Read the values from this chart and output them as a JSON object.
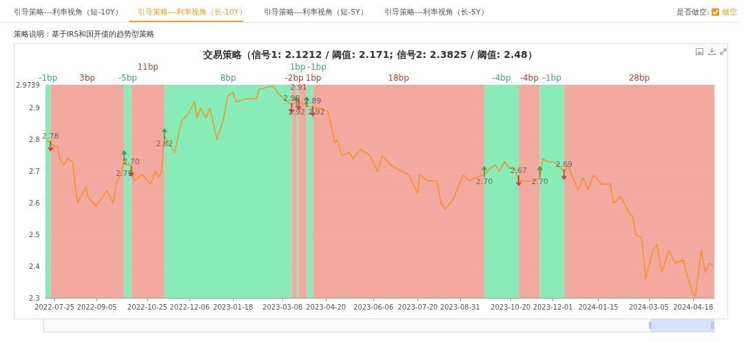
{
  "chart_data": {
    "type": "line",
    "title": "交易策略（信号1: 2.1212 / 阈值: 2.171; 信号2: 2.3825 / 阈值: 2.48）",
    "annotations": [
      "引导策略---利率视角（短-10Y）",
      "引导策略---利率视角（长-10Y）",
      "引导策略---利率视角（短-5Y）",
      "引导策略---利率视角（长-5Y）",
      "是否做空:",
      "做空",
      "策略说明：基于IRS和国开债的趋势型策略"
    ],
    "xlim": [
      "2022-07-16",
      "2024-05-09"
    ],
    "xticks": [
      {
        "value": "2022-07-25",
        "label": "2022-07-25"
      },
      {
        "value": "2022-09-05",
        "label": "2022-09-05"
      },
      {
        "value": "2022-10-25",
        "label": "2022-10-25"
      },
      {
        "value": "2022-12-06",
        "label": "2022-12-06"
      },
      {
        "value": "2023-01-18",
        "label": "2023-01-18"
      },
      {
        "value": "2023-03-08",
        "label": "2023-03-08"
      },
      {
        "value": "2023-04-20",
        "label": "2023-04-20"
      },
      {
        "value": "2023-06-06",
        "label": "2023-06-06"
      },
      {
        "value": "2023-07-20",
        "label": "2023-07-20"
      },
      {
        "value": "2023-08-31",
        "label": "2023-08-31"
      },
      {
        "value": "2023-10-20",
        "label": "2023-10-20"
      },
      {
        "value": "2023-12-01",
        "label": "2023-12-01"
      },
      {
        "value": "2024-01-15",
        "label": "2024-01-15"
      },
      {
        "value": "2024-03-05",
        "label": "2024-03-05"
      },
      {
        "value": "2024-04-18",
        "label": "2024-04-18"
      }
    ],
    "ylim": [
      2.3,
      2.9739
    ],
    "yticks": [
      2.3,
      2.4,
      2.5,
      2.6,
      2.7,
      2.8,
      2.9,
      2.9739
    ],
    "grid": "y",
    "series": [
      {
        "color": "#f7931e",
        "x": [
          "2022-07-17",
          "2022-07-21",
          "2022-07-25",
          "2022-07-28",
          "2022-07-30",
          "2022-08-03",
          "2022-08-07",
          "2022-08-12",
          "2022-08-15",
          "2022-08-17",
          "2022-08-25",
          "2022-08-27",
          "2022-09-04",
          "2022-09-15",
          "2022-09-21",
          "2022-09-25",
          "2022-09-29",
          "2022-10-02",
          "2022-10-04",
          "2022-10-09",
          "2022-10-12",
          "2022-10-20",
          "2022-10-28",
          "2022-11-02",
          "2022-11-05",
          "2022-11-08",
          "2022-11-11",
          "2022-11-15",
          "2022-11-21",
          "2022-11-28",
          "2022-12-04",
          "2022-12-11",
          "2022-12-13",
          "2022-12-17",
          "2022-12-22",
          "2022-12-26",
          "2023-01-02",
          "2023-01-08",
          "2023-01-13",
          "2023-01-18",
          "2023-01-21",
          "2023-01-31",
          "2023-02-10",
          "2023-02-13",
          "2023-02-27",
          "2023-03-03",
          "2023-03-09",
          "2023-03-17",
          "2023-03-22",
          "2023-03-24",
          "2023-04-01",
          "2023-04-07",
          "2023-04-15",
          "2023-04-22",
          "2023-04-29",
          "2023-05-01",
          "2023-05-06",
          "2023-05-13",
          "2023-05-17",
          "2023-05-24",
          "2023-06-03",
          "2023-06-10",
          "2023-06-15",
          "2023-06-23",
          "2023-07-04",
          "2023-07-11",
          "2023-07-20",
          "2023-07-22",
          "2023-07-30",
          "2023-08-08",
          "2023-08-12",
          "2023-08-16",
          "2023-08-24",
          "2023-09-03",
          "2023-09-09",
          "2023-09-15",
          "2023-09-24",
          "2023-09-30",
          "2023-10-05",
          "2023-10-09",
          "2023-10-14",
          "2023-10-19",
          "2023-10-24",
          "2023-10-28",
          "2023-11-04",
          "2023-11-12",
          "2023-11-18",
          "2023-11-21",
          "2023-11-26",
          "2023-12-01",
          "2023-12-06",
          "2023-12-12",
          "2023-12-16",
          "2023-12-22",
          "2023-12-26",
          "2023-12-31",
          "2024-01-05",
          "2024-01-10",
          "2024-01-18",
          "2024-01-27",
          "2024-01-30",
          "2024-02-06",
          "2024-02-11",
          "2024-02-16",
          "2024-02-18",
          "2024-02-21",
          "2024-02-27",
          "2024-03-02",
          "2024-03-09",
          "2024-03-13",
          "2024-03-18",
          "2024-03-25",
          "2024-03-31",
          "2024-04-08",
          "2024-04-13",
          "2024-04-17",
          "2024-04-20",
          "2024-04-26",
          "2024-04-30",
          "2024-05-04",
          "2024-05-08"
        ],
        "values": [
          2.8,
          2.79,
          2.78,
          2.78,
          2.74,
          2.72,
          2.74,
          2.73,
          2.64,
          2.6,
          2.65,
          2.62,
          2.59,
          2.64,
          2.6,
          2.67,
          2.69,
          2.74,
          2.72,
          2.72,
          2.67,
          2.69,
          2.66,
          2.7,
          2.68,
          2.7,
          2.81,
          2.79,
          2.76,
          2.86,
          2.88,
          2.92,
          2.87,
          2.9,
          2.87,
          2.9,
          2.8,
          2.86,
          2.94,
          2.95,
          2.92,
          2.93,
          2.93,
          2.96,
          2.97,
          2.95,
          2.93,
          2.91,
          2.92,
          2.92,
          2.91,
          2.9,
          2.9,
          2.89,
          2.79,
          2.8,
          2.75,
          2.76,
          2.74,
          2.77,
          2.75,
          2.7,
          2.75,
          2.72,
          2.7,
          2.69,
          2.63,
          2.69,
          2.67,
          2.67,
          2.6,
          2.58,
          2.61,
          2.69,
          2.67,
          2.68,
          2.69,
          2.71,
          2.72,
          2.7,
          2.73,
          2.71,
          2.71,
          2.67,
          2.67,
          2.67,
          2.68,
          2.74,
          2.73,
          2.73,
          2.72,
          2.7,
          2.72,
          2.67,
          2.64,
          2.68,
          2.64,
          2.69,
          2.66,
          2.66,
          2.6,
          2.62,
          2.59,
          2.56,
          2.56,
          2.5,
          2.49,
          2.36,
          2.45,
          2.47,
          2.38,
          2.45,
          2.41,
          2.42,
          2.36,
          2.32,
          2.3,
          2.45,
          2.38,
          2.41,
          2.4
        ]
      },
      {
        "type": "scatter",
        "color": "#d7261e",
        "x": [
          "2022-07-21",
          "2022-10-09",
          "2023-03-17",
          "2023-03-24",
          "2023-04-07",
          "2023-10-28",
          "2023-12-12"
        ],
        "values": [
          2.78,
          2.7,
          2.9,
          2.91,
          2.89,
          2.67,
          2.69
        ],
        "value_labels": [
          "2.78",
          "2.70",
          "2.90",
          "2.91",
          "2.89",
          "2.67",
          "2.69"
        ]
      },
      {
        "type": "scatter",
        "color": "#1e9e3e",
        "x": [
          "2022-10-02",
          "2022-11-11",
          "2023-03-22",
          "2023-04-01",
          "2023-09-24",
          "2023-11-18"
        ],
        "values": [
          2.75,
          2.82,
          2.92,
          2.92,
          2.7,
          2.7
        ],
        "value_labels": [
          "2.75",
          "2.82",
          "2.92",
          "2.92",
          "2.70",
          "2.70"
        ]
      }
    ],
    "bands": [
      {
        "axis": "x",
        "from": "2022-07-16",
        "to": "2022-07-21",
        "label": "-1bp",
        "color": "#7eebb2"
      },
      {
        "axis": "x",
        "from": "2022-07-21",
        "to": "2022-10-02",
        "label": "3bp",
        "color": "#f1a398"
      },
      {
        "axis": "x",
        "from": "2022-10-02",
        "to": "2022-10-09",
        "label": "-5bp",
        "color": "#7eebb2"
      },
      {
        "axis": "x",
        "from": "2022-10-09",
        "to": "2022-11-11",
        "label": "11bp",
        "color": "#f1a398"
      },
      {
        "axis": "x",
        "from": "2022-11-11",
        "to": "2023-03-17",
        "label": "8bp",
        "color": "#7eebb2"
      },
      {
        "axis": "x",
        "from": "2023-03-17",
        "to": "2023-03-22",
        "label": "-2bp",
        "color": "#f1a398"
      },
      {
        "axis": "x",
        "from": "2023-03-22",
        "to": "2023-03-24",
        "label": "1bp",
        "color": "#7eebb2"
      },
      {
        "axis": "x",
        "from": "2023-03-24",
        "to": "2023-04-01",
        "label": "1bp",
        "color": "#f1a398"
      },
      {
        "axis": "x",
        "from": "2023-04-01",
        "to": "2023-04-07",
        "label": "-1bp",
        "color": "#7eebb2"
      },
      {
        "axis": "x",
        "from": "2023-04-07",
        "to": "2023-09-24",
        "label": "18bp",
        "color": "#f1a398"
      },
      {
        "axis": "x",
        "from": "2023-09-24",
        "to": "2023-10-28",
        "label": "-4bp",
        "color": "#7eebb2"
      },
      {
        "axis": "x",
        "from": "2023-10-28",
        "to": "2023-11-18",
        "label": "-4bp",
        "color": "#f1a398"
      },
      {
        "axis": "x",
        "from": "2023-11-18",
        "to": "2023-12-12",
        "label": "-1bp",
        "color": "#7eebb2"
      },
      {
        "axis": "x",
        "from": "2023-12-12",
        "to": "2024-05-09",
        "label": "28bp",
        "color": "#f1a398"
      }
    ]
  }
}
